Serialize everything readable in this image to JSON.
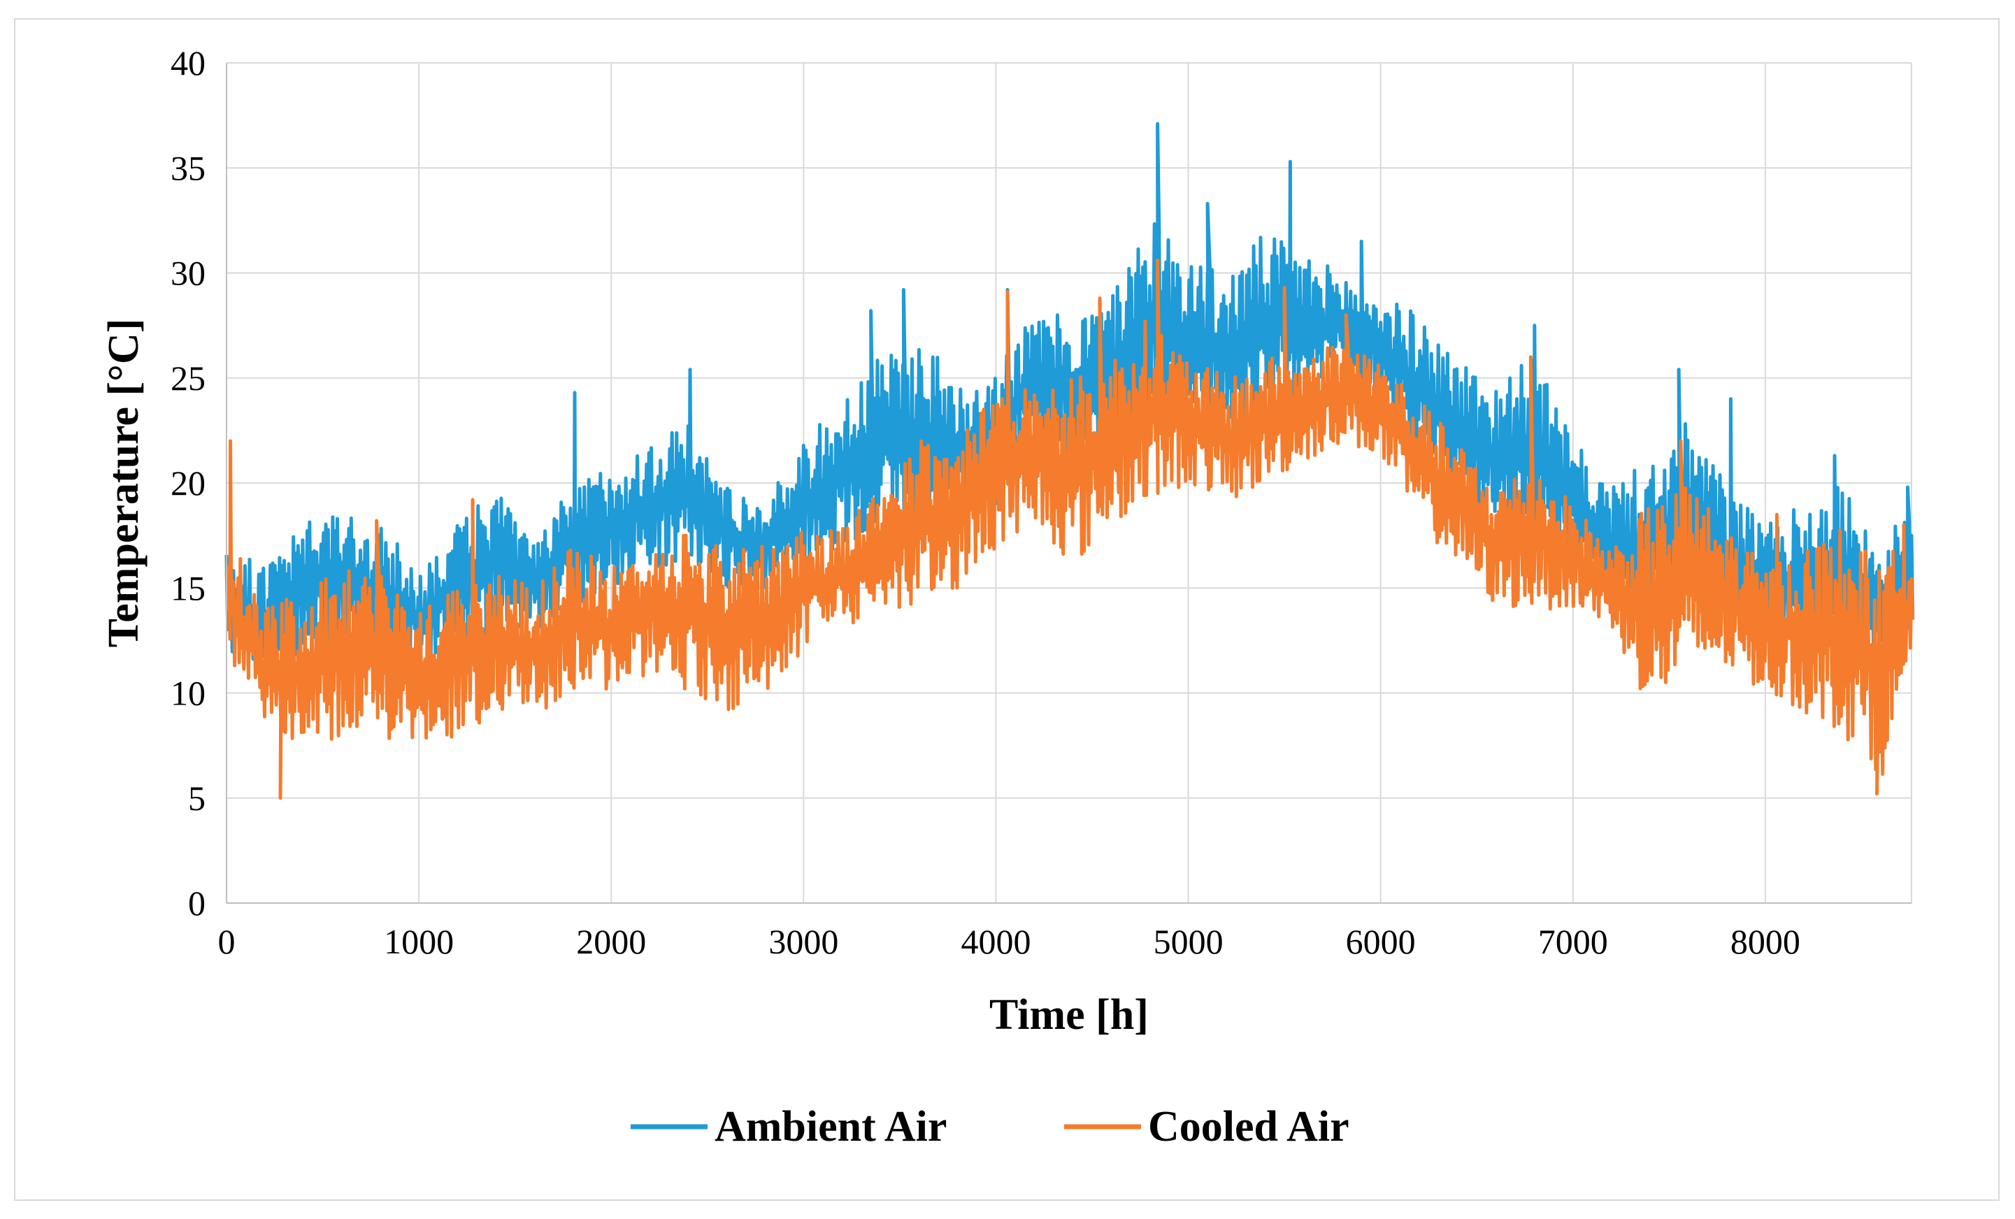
{
  "chart_data": {
    "type": "line",
    "title": "",
    "xlabel": "Time  [h]",
    "ylabel": "Temperature  [°C]",
    "xlim": [
      0,
      8760
    ],
    "ylim": [
      0,
      40
    ],
    "x_ticks": [
      "0",
      "1000",
      "2000",
      "3000",
      "4000",
      "5000",
      "6000",
      "7000",
      "8000"
    ],
    "y_ticks": [
      "0",
      "5",
      "10",
      "15",
      "20",
      "25",
      "30",
      "35",
      "40"
    ],
    "grid": true,
    "legend_position": "bottom",
    "series": [
      {
        "name": "Ambient Air",
        "color": "#1f9bd7",
        "x": [
          0,
          200,
          400,
          600,
          800,
          1000,
          1200,
          1400,
          1600,
          1800,
          2000,
          2200,
          2400,
          2600,
          2800,
          3000,
          3200,
          3400,
          3600,
          3800,
          4000,
          4200,
          4400,
          4600,
          4800,
          5000,
          5200,
          5400,
          5600,
          5800,
          6000,
          6200,
          6400,
          6600,
          6800,
          7000,
          7200,
          7400,
          7600,
          7800,
          8000,
          8200,
          8400,
          8600,
          8760
        ],
        "upper": [
          17,
          16,
          18,
          19,
          18,
          16,
          18,
          20,
          17,
          20,
          21,
          22,
          23,
          20,
          19,
          22,
          24,
          26,
          27,
          25,
          26,
          28,
          28,
          29,
          33,
          31,
          30,
          32,
          31,
          30,
          29,
          28,
          26,
          25,
          26,
          22,
          20,
          21,
          23,
          20,
          18,
          19,
          20,
          17,
          19
        ],
        "lower": [
          12,
          11,
          12,
          12,
          11,
          11,
          12,
          13,
          13,
          14,
          15,
          16,
          16,
          15,
          15,
          16,
          17,
          18,
          18,
          18,
          19,
          22,
          21,
          21,
          23,
          23,
          22,
          23,
          24,
          25,
          24,
          21,
          19,
          17,
          18,
          16,
          14,
          13,
          14,
          13,
          12,
          12,
          12,
          11,
          12
        ],
        "peaks": [
          [
            4840,
            37.1
          ],
          [
            5530,
            35.3
          ],
          [
            1810,
            24.3
          ],
          [
            2410,
            25.4
          ],
          [
            3350,
            28.2
          ],
          [
            3520,
            29.2
          ],
          [
            4060,
            29.2
          ],
          [
            5100,
            33.3
          ],
          [
            5900,
            31.5
          ],
          [
            6800,
            27.5
          ],
          [
            7550,
            25.4
          ],
          [
            7820,
            24.0
          ],
          [
            8360,
            21.3
          ],
          [
            8580,
            14.8
          ],
          [
            8740,
            19.8
          ]
        ]
      },
      {
        "name": "Cooled Air",
        "color": "#f47c2c",
        "x": [
          0,
          200,
          400,
          600,
          800,
          1000,
          1200,
          1400,
          1600,
          1800,
          2000,
          2200,
          2400,
          2600,
          2800,
          3000,
          3200,
          3400,
          3600,
          3800,
          4000,
          4200,
          4400,
          4600,
          4800,
          5000,
          5200,
          5400,
          5600,
          5800,
          6000,
          6200,
          6400,
          6600,
          6800,
          7000,
          7200,
          7400,
          7600,
          7800,
          8000,
          8200,
          8400,
          8600,
          8760
        ],
        "upper": [
          18,
          14,
          15,
          16,
          16,
          14,
          15,
          16,
          15,
          17,
          16,
          17,
          18,
          17,
          17,
          18,
          18,
          20,
          22,
          22,
          25,
          25,
          25,
          26,
          28,
          26,
          25,
          26,
          26,
          27,
          26,
          24,
          22,
          20,
          21,
          19,
          17,
          19,
          20,
          18,
          16,
          17,
          18,
          16,
          18
        ],
        "lower": [
          12,
          8,
          7,
          8,
          8,
          7,
          8,
          9,
          9,
          10,
          10,
          11,
          10,
          9,
          10,
          12,
          13,
          14,
          14,
          15,
          17,
          18,
          16,
          18,
          19,
          20,
          19,
          20,
          21,
          22,
          21,
          18,
          16,
          14,
          14,
          14,
          13,
          9,
          11,
          11,
          10,
          9,
          8,
          6,
          11
        ],
        "peaks": [
          [
            20,
            22.0
          ],
          [
            280,
            5.0
          ],
          [
            780,
            18.2
          ],
          [
            1280,
            19.2
          ],
          [
            4060,
            29.1
          ],
          [
            4540,
            28.8
          ],
          [
            4840,
            30.6
          ],
          [
            5500,
            29.3
          ],
          [
            5820,
            28.0
          ],
          [
            6780,
            26.0
          ],
          [
            7560,
            22.0
          ],
          [
            8060,
            18.5
          ],
          [
            8580,
            5.2
          ],
          [
            8720,
            18.0
          ]
        ]
      }
    ]
  }
}
